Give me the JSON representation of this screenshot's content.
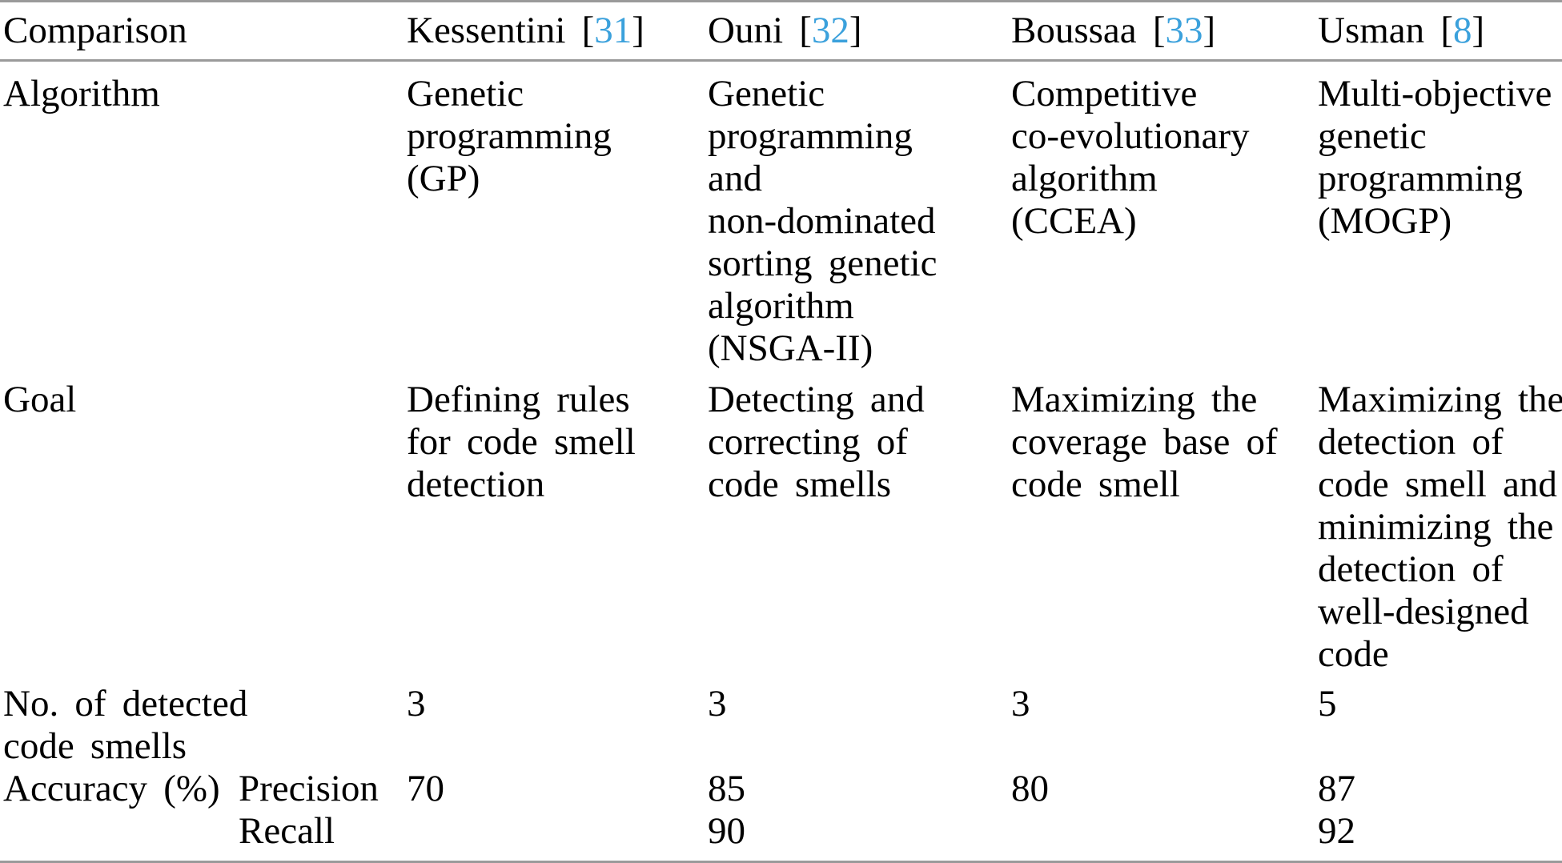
{
  "colors": {
    "text": "#000000",
    "citation_blue": "#3ba1dc",
    "rule_gray": "#9a9a9a"
  },
  "table": {
    "header": {
      "comparison_label": "Comparison",
      "methods": [
        {
          "name": "Kessentini",
          "cite_open": " [",
          "cite_number": "31",
          "cite_close": "]"
        },
        {
          "name": "Ouni",
          "cite_open": " [",
          "cite_number": "32",
          "cite_close": "]"
        },
        {
          "name": "Boussaa",
          "cite_open": " [",
          "cite_number": "33",
          "cite_close": "]"
        },
        {
          "name": "Usman",
          "cite_open": " [",
          "cite_number": "8",
          "cite_close": "]"
        }
      ]
    },
    "rows": {
      "algorithm": {
        "label": "Algorithm",
        "kessentini": [
          "Genetic",
          "programming",
          "(GP)"
        ],
        "ouni": [
          "Genetic",
          "programming",
          "and",
          "non-dominated",
          "sorting genetic",
          "algorithm",
          "(NSGA-II)"
        ],
        "boussaa": [
          "Competitive",
          "co-evolutionary",
          "algorithm",
          "(CCEA)"
        ],
        "usman": [
          "Multi-objective",
          "genetic",
          "programming",
          "(MOGP)"
        ]
      },
      "goal": {
        "label": "Goal",
        "kessentini": [
          "Defining rules",
          "for code smell",
          "detection"
        ],
        "ouni": [
          "Detecting and",
          "correcting of",
          "code smells"
        ],
        "boussaa": [
          "Maximizing the",
          "coverage base of",
          "code smell"
        ],
        "usman": [
          "Maximizing the",
          "detection of",
          "code smell and",
          "minimizing the",
          "detection of",
          "well-designed",
          "code"
        ]
      },
      "detected_smells": {
        "label": [
          "No. of detected",
          "code smells"
        ],
        "kessentini": "3",
        "ouni": "3",
        "boussaa": "3",
        "usman": "5"
      },
      "accuracy": {
        "label": "Accuracy (%)",
        "precision": {
          "label": "Precision",
          "kessentini": "70",
          "ouni": "85",
          "boussaa": "80",
          "usman": "87"
        },
        "recall": {
          "label": "Recall",
          "kessentini": "",
          "ouni": "90",
          "boussaa": "",
          "usman": "92"
        }
      }
    }
  }
}
